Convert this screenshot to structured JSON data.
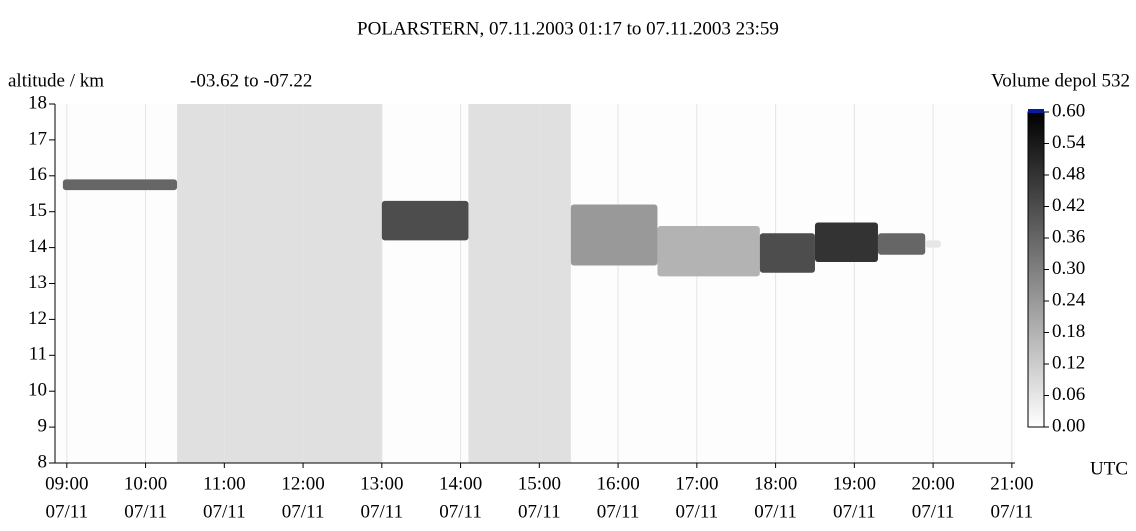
{
  "chart_data": {
    "type": "curtain",
    "title": "POLARSTERN, 07.11.2003 01:17 to 07.11.2003 23:59",
    "y_label": "altitude / km",
    "subtitle": "-03.62 to -07.22",
    "colorbar_label": "Volume depol 532",
    "x_label": "UTC",
    "xlim": [
      8.85,
      21.04
    ],
    "ylim": [
      8,
      18
    ],
    "yticks": [
      8,
      9,
      10,
      11,
      12,
      13,
      14,
      15,
      16,
      17,
      18
    ],
    "xticks": [
      {
        "value": 9,
        "label": "09:00",
        "date": "07/11"
      },
      {
        "value": 10,
        "label": "10:00",
        "date": "07/11"
      },
      {
        "value": 11,
        "label": "11:00",
        "date": "07/11"
      },
      {
        "value": 12,
        "label": "12:00",
        "date": "07/11"
      },
      {
        "value": 13,
        "label": "13:00",
        "date": "07/11"
      },
      {
        "value": 14,
        "label": "14:00",
        "date": "07/11"
      },
      {
        "value": 15,
        "label": "15:00",
        "date": "07/11"
      },
      {
        "value": 16,
        "label": "16:00",
        "date": "07/11"
      },
      {
        "value": 17,
        "label": "17:00",
        "date": "07/11"
      },
      {
        "value": 18,
        "label": "18:00",
        "date": "07/11"
      },
      {
        "value": 19,
        "label": "19:00",
        "date": "07/11"
      },
      {
        "value": 20,
        "label": "20:00",
        "date": "07/11"
      },
      {
        "value": 21,
        "label": "21:00",
        "date": "07/11"
      }
    ],
    "clim": [
      0,
      0.6
    ],
    "cticks": [
      {
        "value": 0,
        "label": "0.00"
      },
      {
        "value": 0.06,
        "label": "0.06"
      },
      {
        "value": 0.12,
        "label": "0.12"
      },
      {
        "value": 0.18,
        "label": "0.18"
      },
      {
        "value": 0.24,
        "label": "0.24"
      },
      {
        "value": 0.3,
        "label": "0.30"
      },
      {
        "value": 0.36,
        "label": "0.36"
      },
      {
        "value": 0.42,
        "label": "0.42"
      },
      {
        "value": 0.48,
        "label": "0.48"
      },
      {
        "value": 0.54,
        "label": "0.54"
      },
      {
        "value": 0.6,
        "label": "0.60"
      }
    ],
    "gaps": [
      [
        10.4,
        13.0
      ],
      [
        14.1,
        15.4
      ]
    ],
    "gap_color": "#e0e0e0",
    "grid": true,
    "layers": [
      {
        "x": [
          8.95,
          10.4
        ],
        "bottom": 15.6,
        "top": 15.9,
        "depol": 0.36
      },
      {
        "x": [
          13.0,
          14.1
        ],
        "bottom": 14.2,
        "top": 15.3,
        "depol": 0.42
      },
      {
        "x": [
          15.4,
          16.5
        ],
        "bottom": 13.5,
        "top": 15.2,
        "depol": 0.24
      },
      {
        "x": [
          16.5,
          17.8
        ],
        "bottom": 13.2,
        "top": 14.6,
        "depol": 0.18
      },
      {
        "x": [
          17.8,
          18.5
        ],
        "bottom": 13.3,
        "top": 14.4,
        "depol": 0.42
      },
      {
        "x": [
          18.5,
          19.3
        ],
        "bottom": 13.6,
        "top": 14.7,
        "depol": 0.48
      },
      {
        "x": [
          19.3,
          19.9
        ],
        "bottom": 13.8,
        "top": 14.4,
        "depol": 0.36
      },
      {
        "x": [
          19.9,
          20.1
        ],
        "bottom": 14.0,
        "top": 14.2,
        "depol": 0.06
      }
    ]
  }
}
